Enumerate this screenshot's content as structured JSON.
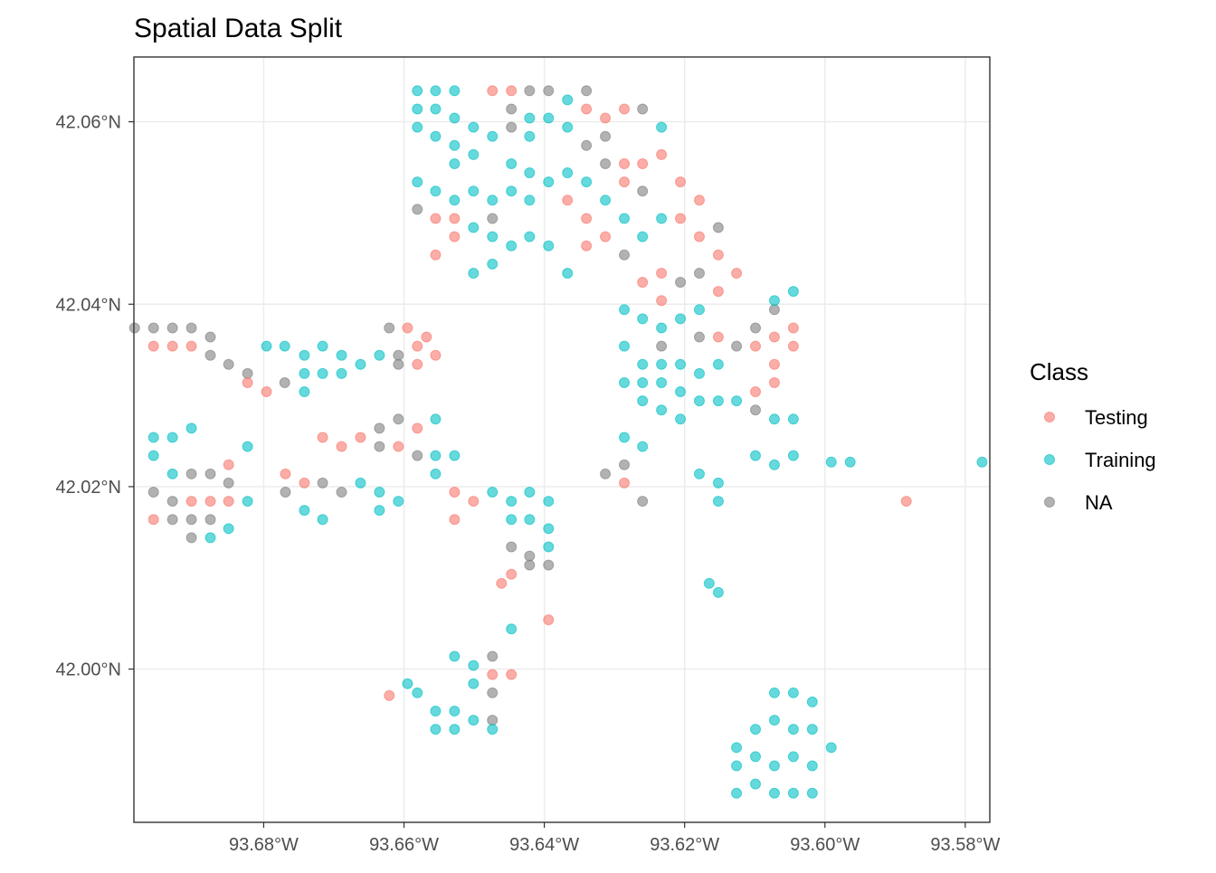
{
  "chart_data": {
    "type": "scatter",
    "title": "Spatial Data Split",
    "xlabel": "",
    "ylabel": "",
    "xlim": [
      -93.6985,
      -93.5765
    ],
    "ylim": [
      41.9832,
      42.0671
    ],
    "x_ticks": [
      -93.68,
      -93.66,
      -93.64,
      -93.62,
      -93.6,
      -93.58
    ],
    "x_tick_labels": [
      "93.68°W",
      "93.66°W",
      "93.64°W",
      "93.62°W",
      "93.60°W",
      "93.58°W"
    ],
    "y_ticks": [
      42.06,
      42.04,
      42.02,
      42.0
    ],
    "y_tick_labels": [
      "42.06°N",
      "42.04°N",
      "42.02°N",
      "42.00°N"
    ],
    "grid": true,
    "legend": {
      "title": "Class",
      "placement": "right",
      "entries": [
        "Testing",
        "Training",
        "NA"
      ]
    },
    "colors": [
      "#F8766D",
      "#00BFC4",
      "#7F7F7F"
    ],
    "point_format": "[longitude, latitude, class_index]",
    "points": [
      [
        -93.6581,
        42.0634,
        1
      ],
      [
        -93.6555,
        42.0634,
        1
      ],
      [
        -93.6528,
        42.0634,
        1
      ],
      [
        -93.6581,
        42.0614,
        1
      ],
      [
        -93.6555,
        42.0614,
        1
      ],
      [
        -93.6528,
        42.0604,
        1
      ],
      [
        -93.6501,
        42.0594,
        1
      ],
      [
        -93.6474,
        42.0584,
        1
      ],
      [
        -93.6581,
        42.0594,
        1
      ],
      [
        -93.6555,
        42.0584,
        1
      ],
      [
        -93.6528,
        42.0574,
        1
      ],
      [
        -93.6501,
        42.0564,
        1
      ],
      [
        -93.6528,
        42.0554,
        1
      ],
      [
        -93.6581,
        42.0534,
        1
      ],
      [
        -93.6555,
        42.0524,
        1
      ],
      [
        -93.6528,
        42.0514,
        1
      ],
      [
        -93.6501,
        42.0524,
        1
      ],
      [
        -93.6474,
        42.0514,
        1
      ],
      [
        -93.6581,
        42.0504,
        2
      ],
      [
        -93.6555,
        42.0494,
        0
      ],
      [
        -93.6528,
        42.0494,
        0
      ],
      [
        -93.6528,
        42.0474,
        0
      ],
      [
        -93.6555,
        42.0454,
        0
      ],
      [
        -93.6501,
        42.0484,
        1
      ],
      [
        -93.6474,
        42.0494,
        2
      ],
      [
        -93.6474,
        42.0634,
        0
      ],
      [
        -93.6447,
        42.0634,
        0
      ],
      [
        -93.6421,
        42.0634,
        2
      ],
      [
        -93.6394,
        42.0634,
        2
      ],
      [
        -93.6367,
        42.0624,
        1
      ],
      [
        -93.6447,
        42.0614,
        2
      ],
      [
        -93.6421,
        42.0604,
        1
      ],
      [
        -93.6394,
        42.0604,
        1
      ],
      [
        -93.6367,
        42.0594,
        1
      ],
      [
        -93.6421,
        42.0584,
        1
      ],
      [
        -93.6447,
        42.0594,
        2
      ],
      [
        -93.634,
        42.0634,
        2
      ],
      [
        -93.634,
        42.0614,
        0
      ],
      [
        -93.6313,
        42.0604,
        0
      ],
      [
        -93.6286,
        42.0614,
        0
      ],
      [
        -93.626,
        42.0614,
        2
      ],
      [
        -93.6233,
        42.0594,
        1
      ],
      [
        -93.6313,
        42.0584,
        2
      ],
      [
        -93.634,
        42.0574,
        2
      ],
      [
        -93.6447,
        42.0554,
        1
      ],
      [
        -93.6421,
        42.0544,
        1
      ],
      [
        -93.6447,
        42.0524,
        1
      ],
      [
        -93.6421,
        42.0514,
        1
      ],
      [
        -93.6394,
        42.0534,
        1
      ],
      [
        -93.6367,
        42.0544,
        1
      ],
      [
        -93.634,
        42.0534,
        1
      ],
      [
        -93.6313,
        42.0554,
        2
      ],
      [
        -93.6367,
        42.0514,
        0
      ],
      [
        -93.634,
        42.0494,
        0
      ],
      [
        -93.6313,
        42.0514,
        1
      ],
      [
        -93.6474,
        42.0474,
        1
      ],
      [
        -93.6447,
        42.0464,
        1
      ],
      [
        -93.6421,
        42.0474,
        1
      ],
      [
        -93.6394,
        42.0464,
        1
      ],
      [
        -93.6474,
        42.0444,
        1
      ],
      [
        -93.6501,
        42.0434,
        1
      ],
      [
        -93.6367,
        42.0434,
        1
      ],
      [
        -93.6286,
        42.0554,
        0
      ],
      [
        -93.626,
        42.0554,
        0
      ],
      [
        -93.6233,
        42.0564,
        0
      ],
      [
        -93.6286,
        42.0534,
        0
      ],
      [
        -93.626,
        42.0524,
        2
      ],
      [
        -93.6313,
        42.0474,
        0
      ],
      [
        -93.634,
        42.0464,
        0
      ],
      [
        -93.6286,
        42.0494,
        1
      ],
      [
        -93.626,
        42.0474,
        1
      ],
      [
        -93.6286,
        42.0454,
        2
      ],
      [
        -93.6233,
        42.0494,
        1
      ],
      [
        -93.6206,
        42.0534,
        0
      ],
      [
        -93.6179,
        42.0514,
        0
      ],
      [
        -93.6206,
        42.0494,
        0
      ],
      [
        -93.6179,
        42.0474,
        0
      ],
      [
        -93.6152,
        42.0484,
        2
      ],
      [
        -93.6152,
        42.0454,
        0
      ],
      [
        -93.6126,
        42.0434,
        0
      ],
      [
        -93.6152,
        42.0414,
        0
      ],
      [
        -93.6179,
        42.0434,
        2
      ],
      [
        -93.6206,
        42.0424,
        2
      ],
      [
        -93.6233,
        42.0434,
        0
      ],
      [
        -93.626,
        42.0424,
        0
      ],
      [
        -93.6233,
        42.0404,
        0
      ],
      [
        -93.6286,
        42.0394,
        1
      ],
      [
        -93.626,
        42.0384,
        1
      ],
      [
        -93.6233,
        42.0374,
        1
      ],
      [
        -93.6206,
        42.0384,
        1
      ],
      [
        -93.6179,
        42.0394,
        1
      ],
      [
        -93.6286,
        42.0354,
        1
      ],
      [
        -93.626,
        42.0334,
        1
      ],
      [
        -93.6233,
        42.0334,
        1
      ],
      [
        -93.6206,
        42.0334,
        1
      ],
      [
        -93.6179,
        42.0324,
        1
      ],
      [
        -93.6152,
        42.0334,
        1
      ],
      [
        -93.6286,
        42.0314,
        1
      ],
      [
        -93.626,
        42.0314,
        1
      ],
      [
        -93.6233,
        42.0314,
        1
      ],
      [
        -93.6206,
        42.0304,
        1
      ],
      [
        -93.6179,
        42.0294,
        1
      ],
      [
        -93.6152,
        42.0294,
        1
      ],
      [
        -93.6126,
        42.0294,
        1
      ],
      [
        -93.626,
        42.0294,
        1
      ],
      [
        -93.6233,
        42.0284,
        1
      ],
      [
        -93.6206,
        42.0274,
        1
      ],
      [
        -93.6233,
        42.0354,
        2
      ],
      [
        -93.6179,
        42.0364,
        2
      ],
      [
        -93.6152,
        42.0364,
        0
      ],
      [
        -93.6126,
        42.0354,
        2
      ],
      [
        -93.6099,
        42.0374,
        2
      ],
      [
        -93.6072,
        42.0394,
        2
      ],
      [
        -93.6045,
        42.0374,
        0
      ],
      [
        -93.6072,
        42.0364,
        0
      ],
      [
        -93.6099,
        42.0354,
        0
      ],
      [
        -93.6045,
        42.0354,
        0
      ],
      [
        -93.6072,
        42.0334,
        0
      ],
      [
        -93.6072,
        42.0314,
        0
      ],
      [
        -93.6099,
        42.0304,
        0
      ],
      [
        -93.6099,
        42.0284,
        2
      ],
      [
        -93.6072,
        42.0274,
        1
      ],
      [
        -93.6045,
        42.0274,
        1
      ],
      [
        -93.6072,
        42.0404,
        1
      ],
      [
        -93.6045,
        42.0414,
        1
      ],
      [
        -93.6286,
        42.0254,
        1
      ],
      [
        -93.626,
        42.0244,
        1
      ],
      [
        -93.6286,
        42.0224,
        2
      ],
      [
        -93.6313,
        42.0214,
        2
      ],
      [
        -93.6286,
        42.0204,
        0
      ],
      [
        -93.626,
        42.0184,
        2
      ],
      [
        -93.6099,
        42.0234,
        1
      ],
      [
        -93.6072,
        42.0224,
        1
      ],
      [
        -93.6045,
        42.0234,
        1
      ],
      [
        -93.5991,
        42.0227,
        1
      ],
      [
        -93.5964,
        42.0227,
        1
      ],
      [
        -93.5776,
        42.0227,
        1
      ],
      [
        -93.5884,
        42.0184,
        0
      ],
      [
        -93.6179,
        42.0214,
        1
      ],
      [
        -93.6152,
        42.0204,
        1
      ],
      [
        -93.6152,
        42.0184,
        1
      ],
      [
        -93.6165,
        42.0094,
        1
      ],
      [
        -93.6152,
        42.0084,
        1
      ],
      [
        -93.6072,
        41.9974,
        1
      ],
      [
        -93.6045,
        41.9974,
        1
      ],
      [
        -93.6018,
        41.9964,
        1
      ],
      [
        -93.6099,
        41.9934,
        1
      ],
      [
        -93.6072,
        41.9944,
        1
      ],
      [
        -93.6045,
        41.9934,
        1
      ],
      [
        -93.6018,
        41.9934,
        1
      ],
      [
        -93.5991,
        41.9914,
        1
      ],
      [
        -93.6126,
        41.9914,
        1
      ],
      [
        -93.6099,
        41.9904,
        1
      ],
      [
        -93.6072,
        41.9894,
        1
      ],
      [
        -93.6045,
        41.9904,
        1
      ],
      [
        -93.6018,
        41.9894,
        1
      ],
      [
        -93.6099,
        41.9874,
        1
      ],
      [
        -93.6072,
        41.9864,
        1
      ],
      [
        -93.6045,
        41.9864,
        1
      ],
      [
        -93.6126,
        41.9864,
        1
      ],
      [
        -93.6018,
        41.9864,
        1
      ],
      [
        -93.6126,
        41.9894,
        1
      ],
      [
        -93.6528,
        42.0194,
        0
      ],
      [
        -93.6501,
        42.0184,
        0
      ],
      [
        -93.6528,
        42.0164,
        0
      ],
      [
        -93.6474,
        42.0194,
        1
      ],
      [
        -93.6447,
        42.0184,
        1
      ],
      [
        -93.6421,
        42.0194,
        1
      ],
      [
        -93.6394,
        42.0184,
        1
      ],
      [
        -93.6447,
        42.0164,
        1
      ],
      [
        -93.6421,
        42.0164,
        1
      ],
      [
        -93.6394,
        42.0154,
        1
      ],
      [
        -93.6447,
        42.0134,
        2
      ],
      [
        -93.6421,
        42.0124,
        2
      ],
      [
        -93.6394,
        42.0134,
        1
      ],
      [
        -93.6447,
        42.0104,
        0
      ],
      [
        -93.6421,
        42.0114,
        2
      ],
      [
        -93.6394,
        42.0114,
        2
      ],
      [
        -93.6461,
        42.0094,
        0
      ],
      [
        -93.6394,
        42.0054,
        0
      ],
      [
        -93.6447,
        42.0044,
        1
      ],
      [
        -93.6621,
        41.9971,
        0
      ],
      [
        -93.6595,
        41.9984,
        1
      ],
      [
        -93.6581,
        41.9974,
        1
      ],
      [
        -93.6528,
        42.0014,
        1
      ],
      [
        -93.6501,
        42.0004,
        1
      ],
      [
        -93.6474,
        42.0014,
        2
      ],
      [
        -93.6474,
        41.9994,
        0
      ],
      [
        -93.6447,
        41.9994,
        0
      ],
      [
        -93.6474,
        41.9974,
        2
      ],
      [
        -93.6501,
        41.9984,
        1
      ],
      [
        -93.6555,
        41.9954,
        1
      ],
      [
        -93.6528,
        41.9954,
        1
      ],
      [
        -93.6501,
        41.9944,
        1
      ],
      [
        -93.6474,
        41.9944,
        2
      ],
      [
        -93.6555,
        41.9934,
        1
      ],
      [
        -93.6528,
        41.9934,
        1
      ],
      [
        -93.6474,
        41.9934,
        1
      ],
      [
        -93.6984,
        42.0374,
        2
      ],
      [
        -93.6957,
        42.0374,
        2
      ],
      [
        -93.693,
        42.0374,
        2
      ],
      [
        -93.6903,
        42.0374,
        2
      ],
      [
        -93.6876,
        42.0364,
        2
      ],
      [
        -93.6957,
        42.0354,
        0
      ],
      [
        -93.693,
        42.0354,
        0
      ],
      [
        -93.6903,
        42.0354,
        0
      ],
      [
        -93.6876,
        42.0344,
        2
      ],
      [
        -93.685,
        42.0334,
        2
      ],
      [
        -93.6823,
        42.0324,
        2
      ],
      [
        -93.6823,
        42.0314,
        0
      ],
      [
        -93.6796,
        42.0304,
        0
      ],
      [
        -93.677,
        42.0314,
        2
      ],
      [
        -93.6742,
        42.0304,
        1
      ],
      [
        -93.6796,
        42.0354,
        1
      ],
      [
        -93.677,
        42.0354,
        1
      ],
      [
        -93.6742,
        42.0344,
        1
      ],
      [
        -93.6716,
        42.0354,
        1
      ],
      [
        -93.6689,
        42.0344,
        1
      ],
      [
        -93.6662,
        42.0334,
        1
      ],
      [
        -93.6742,
        42.0324,
        1
      ],
      [
        -93.6716,
        42.0324,
        1
      ],
      [
        -93.6689,
        42.0324,
        1
      ],
      [
        -93.6635,
        42.0344,
        1
      ],
      [
        -93.6608,
        42.0344,
        2
      ],
      [
        -93.6581,
        42.0354,
        0
      ],
      [
        -93.6555,
        42.0344,
        0
      ],
      [
        -93.6608,
        42.0334,
        2
      ],
      [
        -93.6581,
        42.0334,
        0
      ],
      [
        -93.6621,
        42.0374,
        2
      ],
      [
        -93.6595,
        42.0374,
        0
      ],
      [
        -93.6568,
        42.0364,
        0
      ],
      [
        -93.6957,
        42.0254,
        1
      ],
      [
        -93.693,
        42.0254,
        1
      ],
      [
        -93.6903,
        42.0264,
        1
      ],
      [
        -93.6957,
        42.0234,
        1
      ],
      [
        -93.693,
        42.0214,
        1
      ],
      [
        -93.6903,
        42.0214,
        2
      ],
      [
        -93.6876,
        42.0214,
        2
      ],
      [
        -93.685,
        42.0204,
        2
      ],
      [
        -93.6957,
        42.0194,
        2
      ],
      [
        -93.693,
        42.0184,
        2
      ],
      [
        -93.6903,
        42.0184,
        0
      ],
      [
        -93.6876,
        42.0184,
        0
      ],
      [
        -93.685,
        42.0184,
        0
      ],
      [
        -93.6823,
        42.0184,
        1
      ],
      [
        -93.6957,
        42.0164,
        0
      ],
      [
        -93.693,
        42.0164,
        2
      ],
      [
        -93.6903,
        42.0164,
        2
      ],
      [
        -93.6876,
        42.0164,
        2
      ],
      [
        -93.685,
        42.0154,
        1
      ],
      [
        -93.6876,
        42.0144,
        1
      ],
      [
        -93.6903,
        42.0144,
        2
      ],
      [
        -93.685,
        42.0224,
        0
      ],
      [
        -93.6823,
        42.0244,
        1
      ],
      [
        -93.6769,
        42.0214,
        0
      ],
      [
        -93.6742,
        42.0204,
        0
      ],
      [
        -93.6716,
        42.0204,
        2
      ],
      [
        -93.6689,
        42.0194,
        2
      ],
      [
        -93.6769,
        42.0194,
        2
      ],
      [
        -93.6742,
        42.0174,
        1
      ],
      [
        -93.6716,
        42.0164,
        1
      ],
      [
        -93.6716,
        42.0254,
        0
      ],
      [
        -93.6689,
        42.0244,
        0
      ],
      [
        -93.6662,
        42.0254,
        0
      ],
      [
        -93.6635,
        42.0264,
        2
      ],
      [
        -93.6608,
        42.0274,
        2
      ],
      [
        -93.6635,
        42.0244,
        2
      ],
      [
        -93.6608,
        42.0244,
        0
      ],
      [
        -93.6581,
        42.0264,
        0
      ],
      [
        -93.6581,
        42.0234,
        2
      ],
      [
        -93.6555,
        42.0234,
        1
      ],
      [
        -93.6555,
        42.0214,
        1
      ],
      [
        -93.6528,
        42.0234,
        1
      ],
      [
        -93.6662,
        42.0204,
        1
      ],
      [
        -93.6635,
        42.0194,
        1
      ],
      [
        -93.6608,
        42.0184,
        1
      ],
      [
        -93.6635,
        42.0174,
        1
      ],
      [
        -93.6555,
        42.0274,
        1
      ]
    ]
  }
}
